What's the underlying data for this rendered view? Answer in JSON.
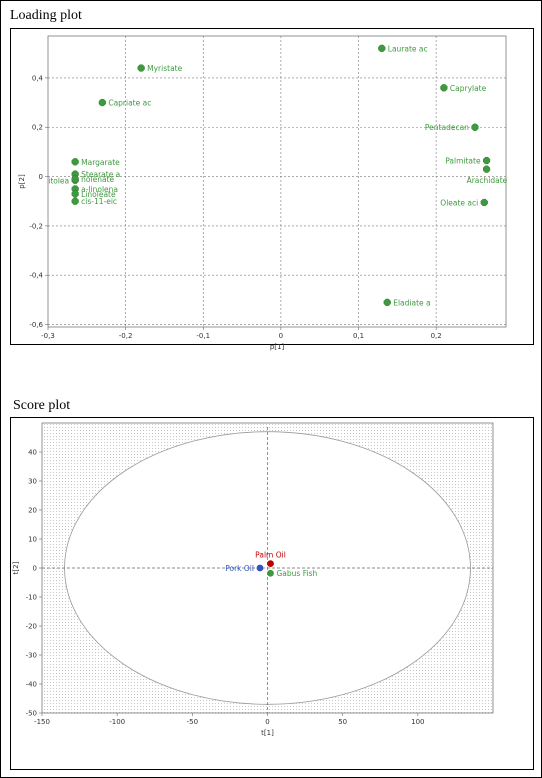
{
  "loading_panel": {
    "title": "Loading plot"
  },
  "score_panel": {
    "title": "Score plot"
  },
  "colors": {
    "green": "#3e9a3e",
    "red": "#c00000",
    "blue": "#3355bb",
    "grid": "#888888"
  },
  "chart_data": [
    {
      "type": "scatter",
      "title": "Loading plot",
      "xlabel": "p[1]",
      "ylabel": "p[2]",
      "xlim": [
        -0.3,
        0.29
      ],
      "ylim": [
        -0.61,
        0.57
      ],
      "xticks": [
        -0.3,
        -0.2,
        -0.1,
        0,
        0.1,
        0.2
      ],
      "xtick_labels": [
        "-0,3",
        "-0,2",
        "-0,1",
        "0",
        "0,1",
        "0,2"
      ],
      "yticks": [
        -0.6,
        -0.4,
        -0.2,
        0,
        0.2,
        0.4
      ],
      "ytick_labels": [
        "-0,6",
        "-0,4",
        "-0,2",
        "0",
        "0,2",
        "0,4"
      ],
      "grid": "dashed at zero and major ticks",
      "points": [
        {
          "label": "Laurate ac",
          "x": 0.13,
          "y": 0.52,
          "color": "green",
          "anchor": "start"
        },
        {
          "label": "Myristate",
          "x": -0.18,
          "y": 0.44,
          "color": "green",
          "anchor": "start"
        },
        {
          "label": "Caprylate",
          "x": 0.21,
          "y": 0.36,
          "color": "green",
          "anchor": "start"
        },
        {
          "label": "Capriate ac",
          "x": -0.23,
          "y": 0.3,
          "color": "green",
          "anchor": "start"
        },
        {
          "label": "Pentadecan",
          "x": 0.25,
          "y": 0.2,
          "color": "green",
          "anchor": "end"
        },
        {
          "label": "Margarate",
          "x": -0.265,
          "y": 0.06,
          "color": "green",
          "anchor": "start"
        },
        {
          "label": "Palmitate",
          "x": 0.265,
          "y": 0.065,
          "color": "green",
          "anchor": "end"
        },
        {
          "label": "Arachidate",
          "x": 0.265,
          "y": 0.03,
          "color": "green",
          "anchor": "start-below"
        },
        {
          "label": "Stearate a",
          "x": -0.265,
          "y": 0.01,
          "color": "green",
          "anchor": "start"
        },
        {
          "label": "itolea",
          "x": -0.265,
          "y": -0.015,
          "color": "green",
          "anchor": "end"
        },
        {
          "label": "nolenate",
          "x": -0.265,
          "y": -0.01,
          "color": "green",
          "anchor": "start"
        },
        {
          "label": "a-linolena",
          "x": -0.265,
          "y": -0.05,
          "color": "green",
          "anchor": "start"
        },
        {
          "label": "Linoleate",
          "x": -0.265,
          "y": -0.07,
          "color": "green",
          "anchor": "start"
        },
        {
          "label": "cis-11-eic",
          "x": -0.265,
          "y": -0.1,
          "color": "green",
          "anchor": "start"
        },
        {
          "label": "Oleate aci",
          "x": 0.262,
          "y": -0.105,
          "color": "green",
          "anchor": "end"
        },
        {
          "label": "Eladiate a",
          "x": 0.137,
          "y": -0.51,
          "color": "green",
          "anchor": "start"
        }
      ]
    },
    {
      "type": "scatter",
      "title": "Score plot",
      "xlabel": "t[1]",
      "ylabel": "t[2]",
      "xlim": [
        -150,
        150
      ],
      "ylim": [
        -50,
        50
      ],
      "xticks": [
        -150,
        -100,
        -50,
        0,
        50,
        100
      ],
      "xtick_labels": [
        "-150",
        "-100",
        "-50",
        "0",
        "50",
        "100"
      ],
      "yticks": [
        -50,
        -40,
        -30,
        -20,
        -10,
        0,
        10,
        20,
        30,
        40
      ],
      "ytick_labels": [
        "-50",
        "-40",
        "-30",
        "-20",
        "-10",
        "0",
        "10",
        "20",
        "30",
        "40"
      ],
      "ellipse": {
        "cx": 0,
        "cy": 0,
        "rx": 135,
        "ry": 47
      },
      "grid": "dense dotted background",
      "points": [
        {
          "label": "Palm Oil",
          "x": 2,
          "y": 1.5,
          "color": "red",
          "anchor": "above"
        },
        {
          "label": "Pork Oil",
          "x": -5,
          "y": 0,
          "color": "blue",
          "anchor": "end"
        },
        {
          "label": "Gabus Fish",
          "x": 2,
          "y": -1.8,
          "color": "green",
          "anchor": "start"
        }
      ]
    }
  ]
}
